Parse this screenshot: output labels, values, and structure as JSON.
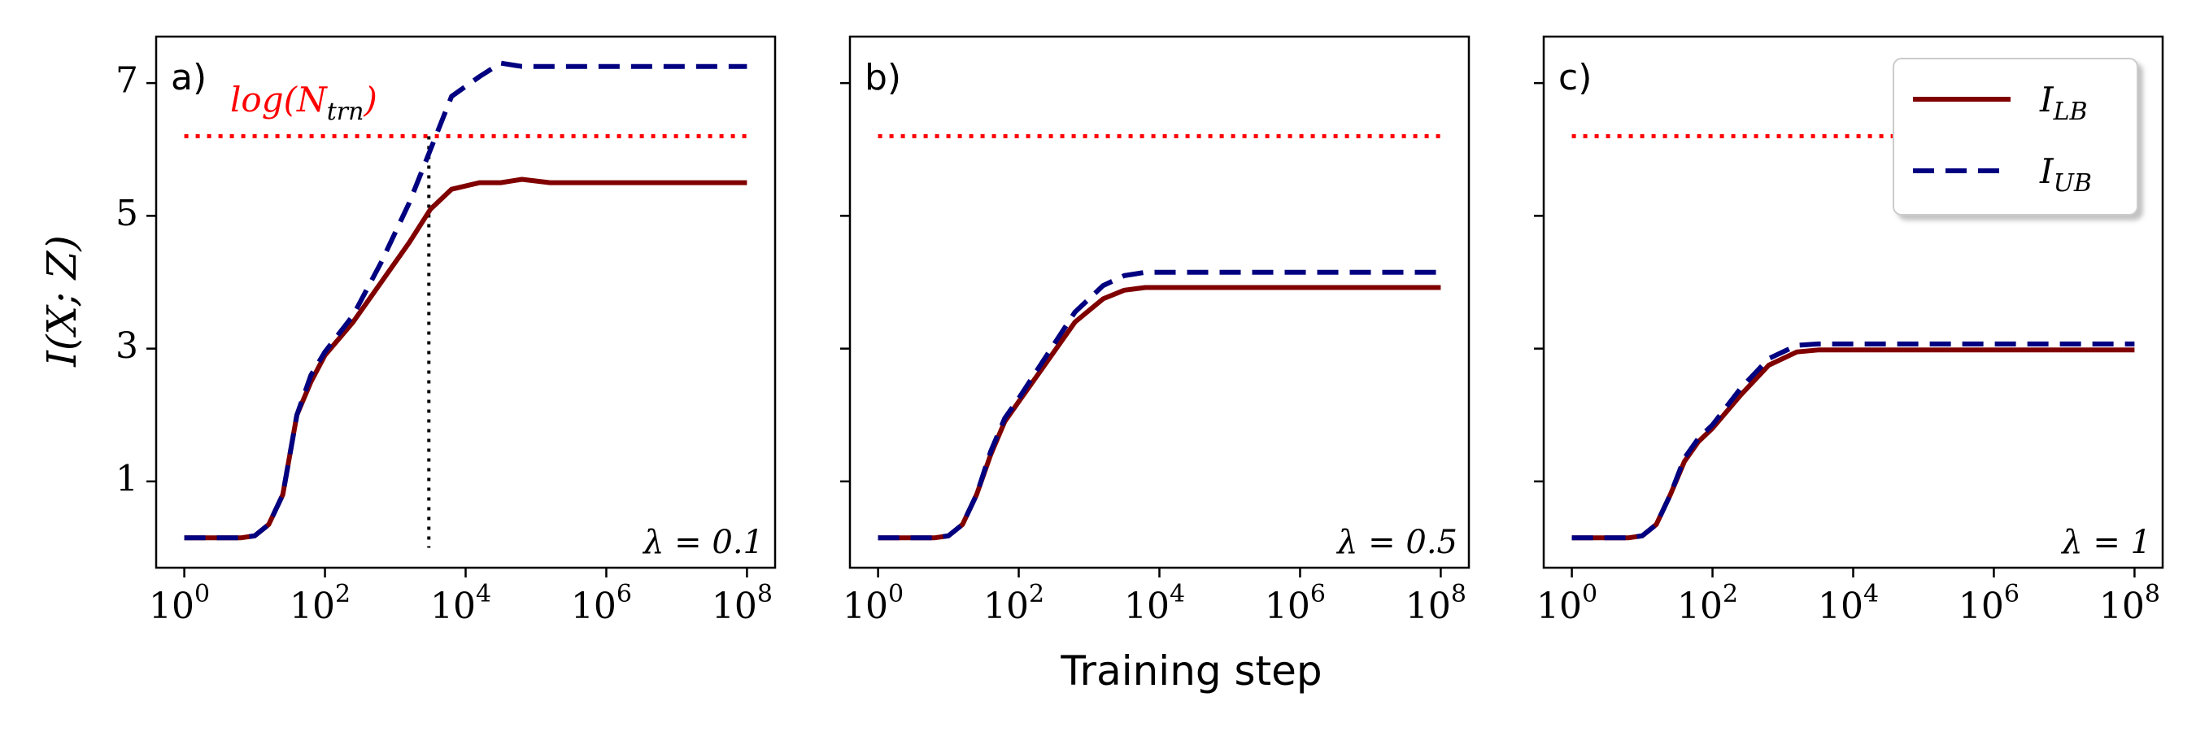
{
  "chart_data": {
    "type": "line",
    "xscale": "log",
    "xlabel": "Training step",
    "ylabel": "I(X; Z)",
    "ylim": [
      -0.3,
      7.7
    ],
    "yticks": [
      1,
      3,
      5,
      7
    ],
    "xticks": [
      {
        "value": 1,
        "base": "10",
        "exp": "0"
      },
      {
        "value": 100,
        "base": "10",
        "exp": "2"
      },
      {
        "value": 10000,
        "base": "10",
        "exp": "4"
      },
      {
        "value": 1000000,
        "base": "10",
        "exp": "6"
      },
      {
        "value": 100000000,
        "base": "10",
        "exp": "8"
      }
    ],
    "xlim_log10": [
      -0.4,
      8.4
    ],
    "reference_line": {
      "label": "log(N_trn)",
      "label_main": "log(N",
      "label_sub": "trn",
      "label_close": ")",
      "value": 6.2,
      "color": "#ff0000"
    },
    "legend": [
      {
        "name": "I_LB",
        "main": "I",
        "sub": "LB",
        "color": "#800000",
        "style": "solid"
      },
      {
        "name": "I_UB",
        "main": "I",
        "sub": "UB",
        "color": "#000080",
        "style": "dashed"
      }
    ],
    "panels": [
      {
        "label": "a)",
        "lambda": "λ = 0.1",
        "vline_x": 3000,
        "series": [
          {
            "name": "I_LB",
            "x_log10": [
              0,
              0.5,
              0.8,
              1,
              1.2,
              1.4,
              1.6,
              1.8,
              2,
              2.4,
              2.8,
              3.2,
              3.5,
              3.8,
              4.2,
              4.5,
              4.8,
              5.2,
              6,
              7,
              8
            ],
            "y": [
              0.15,
              0.15,
              0.15,
              0.18,
              0.35,
              0.8,
              2.0,
              2.5,
              2.9,
              3.4,
              4.0,
              4.6,
              5.1,
              5.4,
              5.5,
              5.5,
              5.55,
              5.5,
              5.5,
              5.5,
              5.5
            ]
          },
          {
            "name": "I_UB",
            "x_log10": [
              0,
              0.5,
              0.8,
              1,
              1.2,
              1.4,
              1.6,
              1.8,
              2,
              2.4,
              2.8,
              3.2,
              3.5,
              3.8,
              4.2,
              4.5,
              4.8,
              5.2,
              6,
              7,
              8
            ],
            "y": [
              0.15,
              0.15,
              0.15,
              0.18,
              0.35,
              0.8,
              2.0,
              2.6,
              2.95,
              3.5,
              4.3,
              5.2,
              6.0,
              6.8,
              7.1,
              7.3,
              7.25,
              7.25,
              7.25,
              7.25,
              7.25
            ]
          }
        ]
      },
      {
        "label": "b)",
        "lambda": "λ = 0.5",
        "series": [
          {
            "name": "I_LB",
            "x_log10": [
              0,
              0.5,
              0.8,
              1,
              1.2,
              1.4,
              1.6,
              1.8,
              2,
              2.4,
              2.8,
              3.2,
              3.5,
              3.8,
              4.2,
              5,
              6,
              7,
              8
            ],
            "y": [
              0.15,
              0.15,
              0.15,
              0.18,
              0.35,
              0.8,
              1.4,
              1.9,
              2.2,
              2.8,
              3.4,
              3.75,
              3.88,
              3.92,
              3.92,
              3.92,
              3.92,
              3.92,
              3.92
            ]
          },
          {
            "name": "I_UB",
            "x_log10": [
              0,
              0.5,
              0.8,
              1,
              1.2,
              1.4,
              1.6,
              1.8,
              2,
              2.4,
              2.8,
              3.2,
              3.5,
              3.8,
              4.2,
              5,
              6,
              7,
              8
            ],
            "y": [
              0.15,
              0.15,
              0.15,
              0.18,
              0.35,
              0.8,
              1.45,
              1.95,
              2.25,
              2.9,
              3.55,
              3.95,
              4.1,
              4.15,
              4.15,
              4.15,
              4.15,
              4.15,
              4.15
            ]
          }
        ]
      },
      {
        "label": "c)",
        "lambda": "λ = 1",
        "series": [
          {
            "name": "I_LB",
            "x_log10": [
              0,
              0.5,
              0.8,
              1,
              1.2,
              1.4,
              1.6,
              1.8,
              2,
              2.4,
              2.8,
              3.2,
              3.5,
              4,
              5,
              6,
              7,
              8
            ],
            "y": [
              0.15,
              0.15,
              0.15,
              0.18,
              0.35,
              0.8,
              1.3,
              1.6,
              1.8,
              2.3,
              2.75,
              2.95,
              2.98,
              2.98,
              2.98,
              2.98,
              2.98,
              2.98
            ]
          },
          {
            "name": "I_UB",
            "x_log10": [
              0,
              0.5,
              0.8,
              1,
              1.2,
              1.4,
              1.6,
              1.8,
              2,
              2.4,
              2.8,
              3.2,
              3.5,
              4,
              5,
              6,
              7,
              8
            ],
            "y": [
              0.15,
              0.15,
              0.15,
              0.18,
              0.35,
              0.8,
              1.35,
              1.65,
              1.85,
              2.4,
              2.85,
              3.05,
              3.07,
              3.07,
              3.07,
              3.07,
              3.07,
              3.07
            ]
          }
        ]
      }
    ]
  }
}
